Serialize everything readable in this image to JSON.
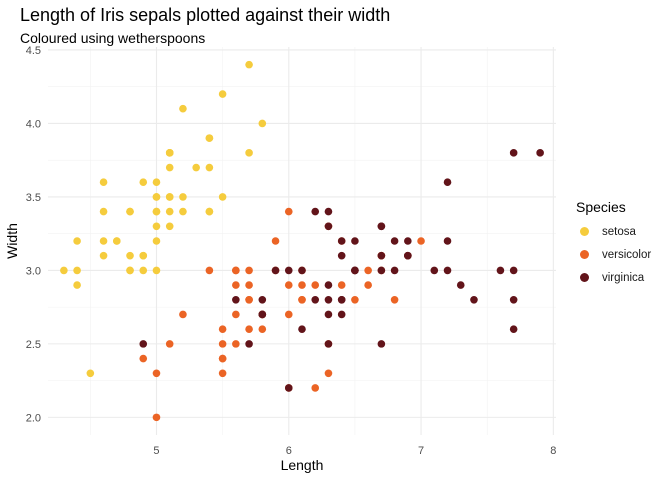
{
  "chart_data": {
    "type": "scatter",
    "title": "Length of Iris sepals plotted against their width",
    "subtitle": "Coloured using wetherspoons",
    "xlabel": "Length",
    "ylabel": "Width",
    "xlim": [
      4.18,
      8.02
    ],
    "ylim": [
      1.88,
      4.52
    ],
    "x_ticks": [
      5,
      6,
      7,
      8
    ],
    "y_ticks": [
      2.0,
      2.5,
      3.0,
      3.5,
      4.0,
      4.5
    ],
    "x_tick_labels": [
      "5",
      "6",
      "7",
      "8"
    ],
    "y_tick_labels": [
      "2.0",
      "2.5",
      "3.0",
      "3.5",
      "4.0",
      "4.5"
    ],
    "grid": true,
    "legend": {
      "title": "Species",
      "position": "right"
    },
    "series": [
      {
        "name": "setosa",
        "color": "#F5CC3D",
        "points": [
          [
            5.1,
            3.5
          ],
          [
            4.9,
            3.0
          ],
          [
            4.7,
            3.2
          ],
          [
            4.6,
            3.1
          ],
          [
            5.0,
            3.6
          ],
          [
            5.4,
            3.9
          ],
          [
            4.6,
            3.4
          ],
          [
            5.0,
            3.4
          ],
          [
            4.4,
            2.9
          ],
          [
            4.9,
            3.1
          ],
          [
            5.4,
            3.7
          ],
          [
            4.8,
            3.4
          ],
          [
            4.8,
            3.0
          ],
          [
            4.3,
            3.0
          ],
          [
            5.8,
            4.0
          ],
          [
            5.7,
            4.4
          ],
          [
            5.4,
            3.9
          ],
          [
            5.1,
            3.5
          ],
          [
            5.7,
            3.8
          ],
          [
            5.1,
            3.8
          ],
          [
            5.4,
            3.4
          ],
          [
            5.1,
            3.7
          ],
          [
            4.6,
            3.6
          ],
          [
            5.1,
            3.3
          ],
          [
            4.8,
            3.4
          ],
          [
            5.0,
            3.0
          ],
          [
            5.0,
            3.4
          ],
          [
            5.2,
            3.5
          ],
          [
            5.2,
            3.4
          ],
          [
            4.7,
            3.2
          ],
          [
            4.8,
            3.1
          ],
          [
            5.4,
            3.4
          ],
          [
            5.2,
            4.1
          ],
          [
            5.5,
            4.2
          ],
          [
            4.9,
            3.1
          ],
          [
            5.0,
            3.2
          ],
          [
            5.5,
            3.5
          ],
          [
            4.9,
            3.6
          ],
          [
            4.4,
            3.0
          ],
          [
            5.1,
            3.4
          ],
          [
            5.0,
            3.5
          ],
          [
            4.5,
            2.3
          ],
          [
            4.4,
            3.2
          ],
          [
            5.0,
            3.5
          ],
          [
            5.1,
            3.8
          ],
          [
            4.8,
            3.0
          ],
          [
            5.1,
            3.8
          ],
          [
            4.6,
            3.2
          ],
          [
            5.3,
            3.7
          ],
          [
            5.0,
            3.3
          ]
        ]
      },
      {
        "name": "versicolor",
        "color": "#EB6425",
        "points": [
          [
            7.0,
            3.2
          ],
          [
            6.4,
            3.2
          ],
          [
            6.9,
            3.1
          ],
          [
            5.5,
            2.3
          ],
          [
            6.5,
            2.8
          ],
          [
            5.7,
            2.8
          ],
          [
            6.3,
            3.3
          ],
          [
            4.9,
            2.4
          ],
          [
            6.6,
            2.9
          ],
          [
            5.2,
            2.7
          ],
          [
            5.0,
            2.0
          ],
          [
            5.9,
            3.0
          ],
          [
            6.0,
            2.2
          ],
          [
            6.1,
            2.9
          ],
          [
            5.6,
            2.9
          ],
          [
            6.7,
            3.1
          ],
          [
            5.6,
            3.0
          ],
          [
            5.8,
            2.7
          ],
          [
            6.2,
            2.2
          ],
          [
            5.6,
            2.5
          ],
          [
            5.9,
            3.2
          ],
          [
            6.1,
            2.8
          ],
          [
            6.3,
            2.5
          ],
          [
            6.1,
            2.8
          ],
          [
            6.4,
            2.9
          ],
          [
            6.6,
            3.0
          ],
          [
            6.8,
            2.8
          ],
          [
            6.7,
            3.0
          ],
          [
            6.0,
            2.9
          ],
          [
            5.7,
            2.6
          ],
          [
            5.5,
            2.4
          ],
          [
            5.5,
            2.4
          ],
          [
            5.8,
            2.7
          ],
          [
            6.0,
            2.7
          ],
          [
            5.4,
            3.0
          ],
          [
            6.0,
            3.4
          ],
          [
            6.7,
            3.1
          ],
          [
            6.3,
            2.3
          ],
          [
            5.6,
            3.0
          ],
          [
            5.5,
            2.5
          ],
          [
            5.5,
            2.6
          ],
          [
            6.1,
            3.0
          ],
          [
            5.8,
            2.6
          ],
          [
            5.0,
            2.3
          ],
          [
            5.6,
            2.7
          ],
          [
            5.7,
            3.0
          ],
          [
            5.7,
            2.9
          ],
          [
            6.2,
            2.9
          ],
          [
            5.1,
            2.5
          ],
          [
            5.7,
            2.8
          ]
        ]
      },
      {
        "name": "virginica",
        "color": "#62141A",
        "points": [
          [
            6.3,
            3.3
          ],
          [
            5.8,
            2.7
          ],
          [
            7.1,
            3.0
          ],
          [
            6.3,
            2.9
          ],
          [
            6.5,
            3.0
          ],
          [
            7.6,
            3.0
          ],
          [
            4.9,
            2.5
          ],
          [
            7.3,
            2.9
          ],
          [
            6.7,
            2.5
          ],
          [
            7.2,
            3.6
          ],
          [
            6.5,
            3.2
          ],
          [
            6.4,
            2.7
          ],
          [
            6.8,
            3.0
          ],
          [
            5.7,
            2.5
          ],
          [
            5.8,
            2.8
          ],
          [
            6.4,
            3.2
          ],
          [
            6.5,
            3.0
          ],
          [
            7.7,
            3.8
          ],
          [
            7.7,
            2.6
          ],
          [
            6.0,
            2.2
          ],
          [
            6.9,
            3.2
          ],
          [
            5.6,
            2.8
          ],
          [
            7.7,
            2.8
          ],
          [
            6.3,
            2.7
          ],
          [
            6.7,
            3.3
          ],
          [
            7.2,
            3.2
          ],
          [
            6.2,
            2.8
          ],
          [
            6.1,
            3.0
          ],
          [
            6.4,
            2.8
          ],
          [
            7.2,
            3.0
          ],
          [
            7.4,
            2.8
          ],
          [
            7.9,
            3.8
          ],
          [
            6.4,
            2.8
          ],
          [
            6.3,
            2.8
          ],
          [
            6.1,
            2.6
          ],
          [
            7.7,
            3.0
          ],
          [
            6.3,
            3.4
          ],
          [
            6.4,
            3.1
          ],
          [
            6.0,
            3.0
          ],
          [
            6.9,
            3.1
          ],
          [
            6.7,
            3.1
          ],
          [
            6.9,
            3.1
          ],
          [
            5.8,
            2.7
          ],
          [
            6.8,
            3.2
          ],
          [
            6.7,
            3.3
          ],
          [
            6.7,
            3.0
          ],
          [
            6.3,
            2.5
          ],
          [
            6.5,
            3.0
          ],
          [
            6.2,
            3.4
          ],
          [
            5.9,
            3.0
          ]
        ]
      }
    ]
  }
}
